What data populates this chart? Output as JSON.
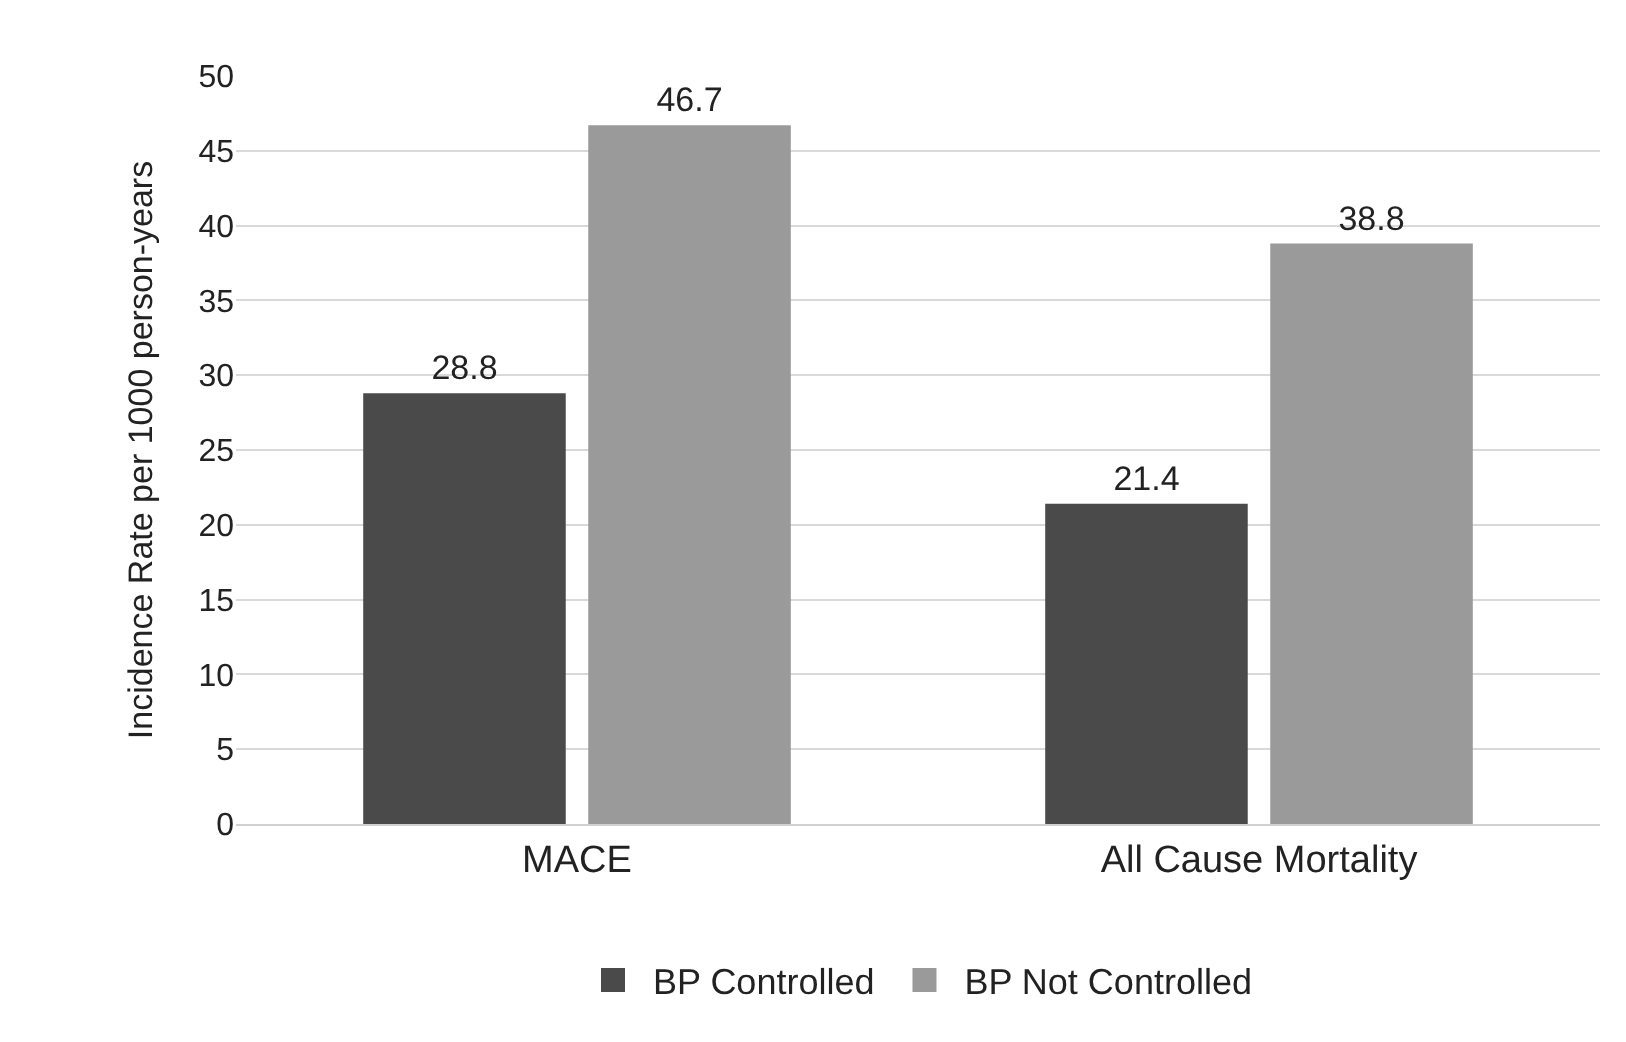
{
  "chart_data": {
    "type": "bar",
    "ylabel": "Incidence Rate per 1000 person-years",
    "categories": [
      "MACE",
      "All Cause Mortality"
    ],
    "series": [
      {
        "name": "BP Controlled",
        "color": "#4a4a4a",
        "values": [
          28.8,
          21.4
        ]
      },
      {
        "name": "BP Not Controlled",
        "color": "#9a9a9a",
        "values": [
          46.7,
          38.8
        ]
      }
    ],
    "ylim": [
      0,
      50
    ],
    "yticks": [
      0,
      5,
      10,
      15,
      20,
      25,
      30,
      35,
      40,
      45,
      50
    ],
    "grid": "y",
    "legend": "bottom",
    "data_labels": true
  }
}
